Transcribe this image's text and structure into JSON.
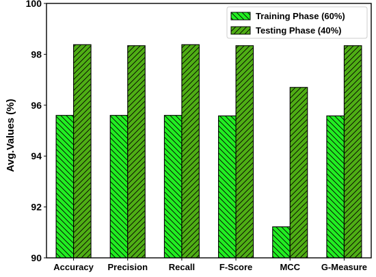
{
  "chart_data": {
    "type": "bar",
    "title": "",
    "xlabel": "",
    "ylabel": "Avg.Values (%)",
    "ylim": [
      90,
      100
    ],
    "yticks": [
      90,
      92,
      94,
      96,
      98,
      100
    ],
    "grid": false,
    "legend_position": "top-right",
    "categories": [
      "Accuracy",
      "Precision",
      "Recall",
      "F-Score",
      "MCC",
      "G-Measure"
    ],
    "series": [
      {
        "name": "Training Phase (60%)",
        "values": [
          95.6,
          95.6,
          95.6,
          95.58,
          91.22,
          95.58
        ],
        "color": "#22ee22",
        "hatch": "\\\\"
      },
      {
        "name": "Testing Phase (40%)",
        "values": [
          98.38,
          98.34,
          98.38,
          98.34,
          96.7,
          98.34
        ],
        "color": "#4fae15",
        "hatch": "//"
      }
    ]
  }
}
